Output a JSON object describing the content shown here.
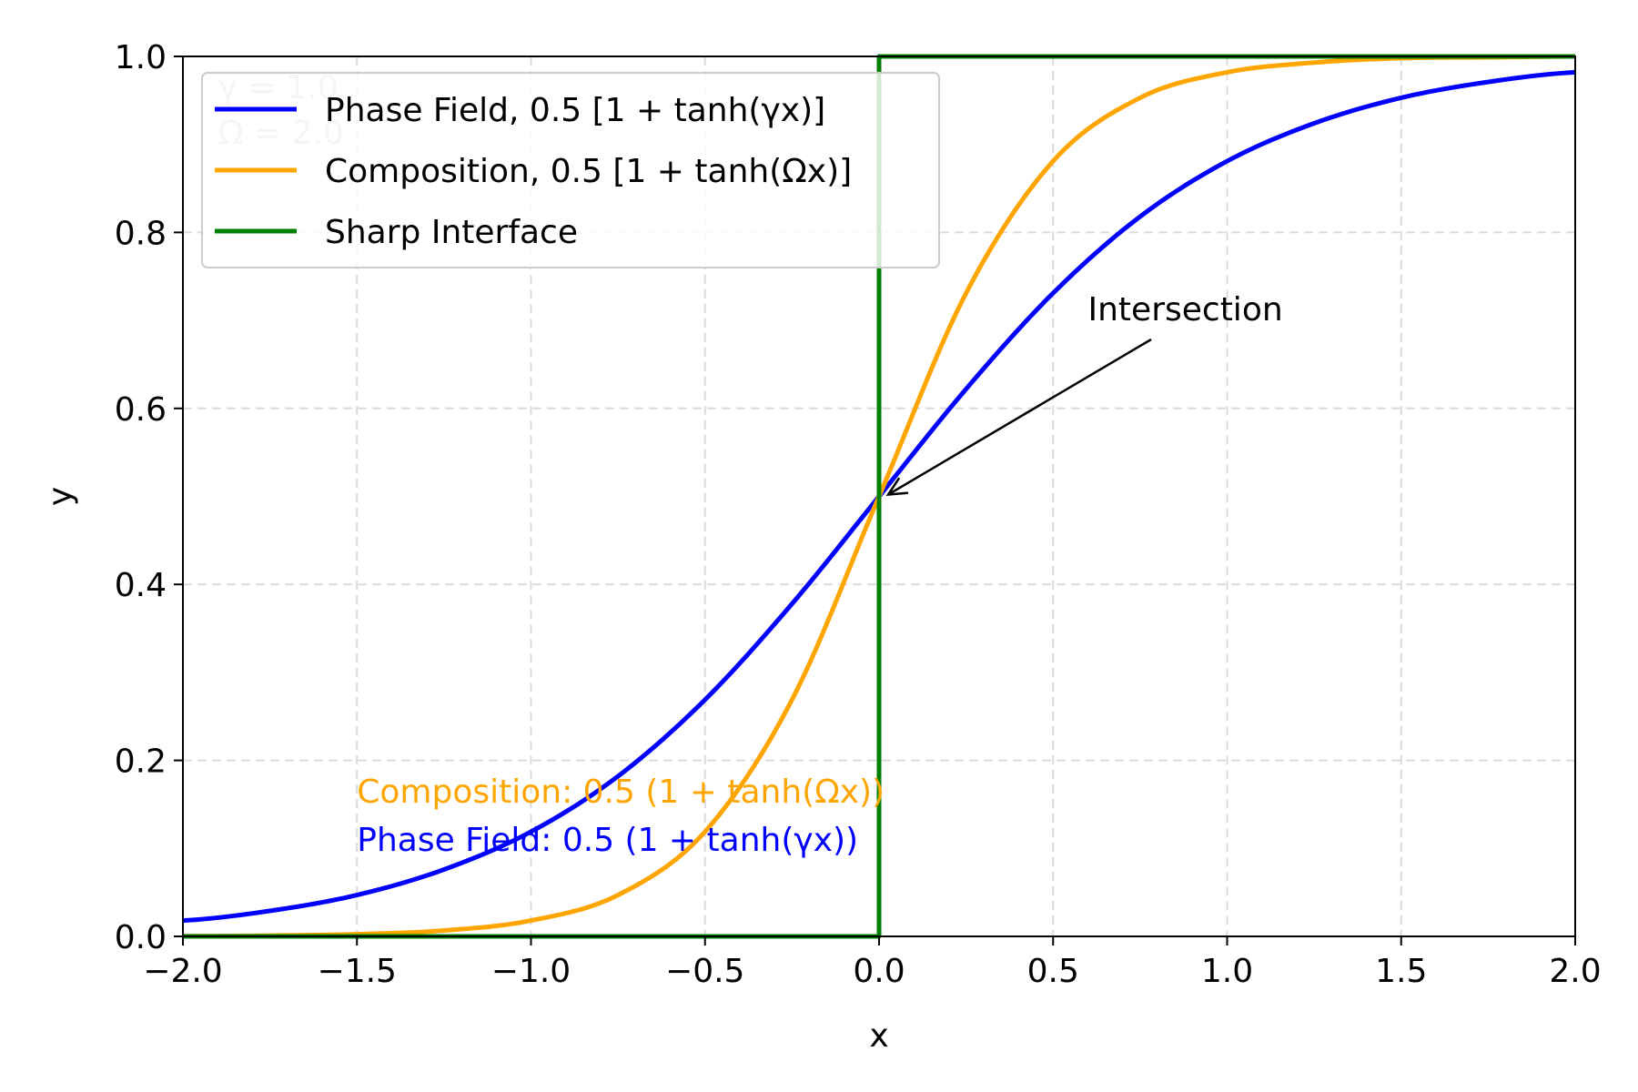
{
  "chart_data": {
    "type": "line",
    "title": "",
    "xlabel": "x",
    "ylabel": "y",
    "xlim": [
      -2.0,
      2.0
    ],
    "ylim": [
      0.0,
      1.0
    ],
    "xticks": [
      "−2.0",
      "−1.5",
      "−1.0",
      "−0.5",
      "0.0",
      "0.5",
      "1.0",
      "1.5",
      "2.0"
    ],
    "xtick_values": [
      -2.0,
      -1.5,
      -1.0,
      -0.5,
      0.0,
      0.5,
      1.0,
      1.5,
      2.0
    ],
    "yticks": [
      "0.0",
      "0.2",
      "0.4",
      "0.6",
      "0.8",
      "1.0"
    ],
    "ytick_values": [
      0.0,
      0.2,
      0.4,
      0.6,
      0.8,
      1.0
    ],
    "grid": true,
    "grid_style": "dashed",
    "legend_position": "upper-left",
    "series": [
      {
        "name": "Phase Field, 0.5 [1 + tanh(γx)]",
        "color": "#0000ff",
        "x": [
          -2.0,
          -1.75,
          -1.5,
          -1.25,
          -1.0,
          -0.75,
          -0.5,
          -0.25,
          0.0,
          0.25,
          0.5,
          0.75,
          1.0,
          1.25,
          1.5,
          1.75,
          2.0
        ],
        "y": [
          0.018,
          0.029,
          0.047,
          0.076,
          0.119,
          0.182,
          0.269,
          0.378,
          0.5,
          0.622,
          0.731,
          0.818,
          0.881,
          0.924,
          0.953,
          0.971,
          0.982
        ]
      },
      {
        "name": "Composition, 0.5 [1 + tanh(Ωx)]",
        "color": "#ffa500",
        "x": [
          -2.0,
          -1.75,
          -1.5,
          -1.25,
          -1.0,
          -0.75,
          -0.5,
          -0.25,
          0.0,
          0.25,
          0.5,
          0.75,
          1.0,
          1.25,
          1.5,
          1.75,
          2.0
        ],
        "y": [
          0.0003,
          0.0009,
          0.0025,
          0.0067,
          0.018,
          0.047,
          0.119,
          0.269,
          0.5,
          0.731,
          0.881,
          0.953,
          0.982,
          0.993,
          0.998,
          0.999,
          1.0
        ]
      },
      {
        "name": "Sharp Interface",
        "color": "#008000",
        "x": [
          -2.0,
          0.0,
          0.0,
          2.0
        ],
        "y": [
          0.0,
          0.0,
          1.0,
          1.0
        ]
      }
    ],
    "annotations": {
      "params": [
        "γ = 1.0",
        "Ω = 2.0"
      ],
      "intersection": {
        "text": "Intersection",
        "point": [
          0.0,
          0.5
        ],
        "text_at": [
          0.6,
          0.7
        ]
      },
      "formulas": [
        {
          "text": "Composition: 0.5 (1 + tanh(Ωx))",
          "color": "#ffa500",
          "at": [
            -1.5,
            0.16
          ]
        },
        {
          "text": "Phase Field: 0.5 (1 + tanh(γx))",
          "color": "#0000ff",
          "at": [
            -1.5,
            0.105
          ]
        }
      ]
    }
  }
}
